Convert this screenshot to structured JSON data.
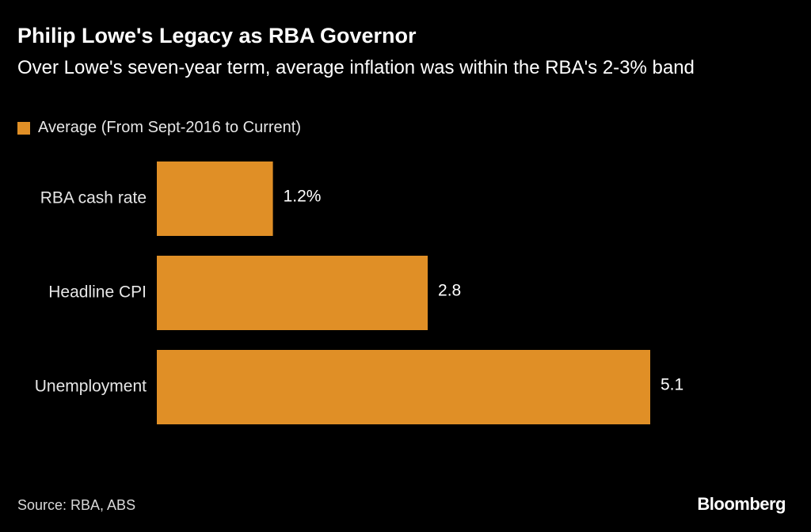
{
  "header": {
    "title": "Philip Lowe's Legacy as RBA Governor",
    "subtitle": "Over Lowe's seven-year term, average inflation was within the RBA's 2-3% band"
  },
  "legend": {
    "label": "Average (From Sept-2016 to Current)",
    "color": "#e08f26"
  },
  "chart_data": {
    "type": "bar",
    "orientation": "horizontal",
    "categories": [
      "RBA cash rate",
      "Headline CPI",
      "Unemployment"
    ],
    "series": [
      {
        "name": "Average (From Sept-2016 to Current)",
        "values": [
          1.2,
          2.8,
          5.1
        ],
        "labels": [
          "1.2%",
          "2.8",
          "5.1"
        ]
      }
    ],
    "title": "Philip Lowe's Legacy as RBA Governor",
    "subtitle": "Over Lowe's seven-year term, average inflation was within the RBA's 2-3% band",
    "xlabel": "",
    "ylabel": "",
    "xlim": [
      0,
      5.1
    ],
    "grid": false,
    "legend_position": "top-left"
  },
  "footer": {
    "source": "Source: RBA, ABS",
    "brand": "Bloomberg"
  },
  "colors": {
    "background": "#000000",
    "bar": "#e08f26",
    "text": "#ffffff",
    "muted_text": "#d9d9d9"
  }
}
